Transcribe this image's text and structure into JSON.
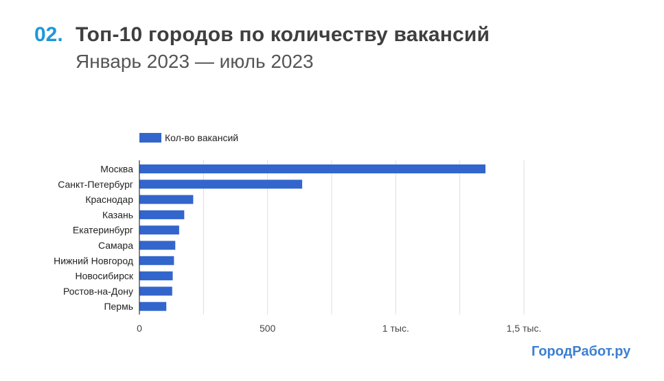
{
  "header": {
    "number": "02.",
    "title": "Топ-10 городов по количеству вакансий",
    "subtitle": "Январь 2023 — июль 2023"
  },
  "brand": {
    "label": "ГородРабот.ру"
  },
  "colors": {
    "bar": "#3366cc",
    "grid": "#dddddd",
    "axis": "#333333",
    "text": "#222222"
  },
  "chart_data": {
    "type": "bar",
    "orientation": "horizontal",
    "categories": [
      "Москва",
      "Санкт-Петербург",
      "Краснодар",
      "Казань",
      "Екатеринбург",
      "Самара",
      "Нижний Новгород",
      "Новосибирск",
      "Ростов-на-Дону",
      "Пермь"
    ],
    "series": [
      {
        "name": "Кол-во вакансий",
        "values": [
          1350,
          635,
          210,
          175,
          155,
          140,
          135,
          130,
          128,
          105
        ]
      }
    ],
    "xlim": [
      0,
      1500
    ],
    "xticks": [
      {
        "value": 0,
        "label": "0"
      },
      {
        "value": 500,
        "label": "500"
      },
      {
        "value": 1000,
        "label": "1 тыс."
      },
      {
        "value": 1500,
        "label": "1,5 тыс."
      }
    ],
    "grid": true,
    "legend": "top-left"
  }
}
